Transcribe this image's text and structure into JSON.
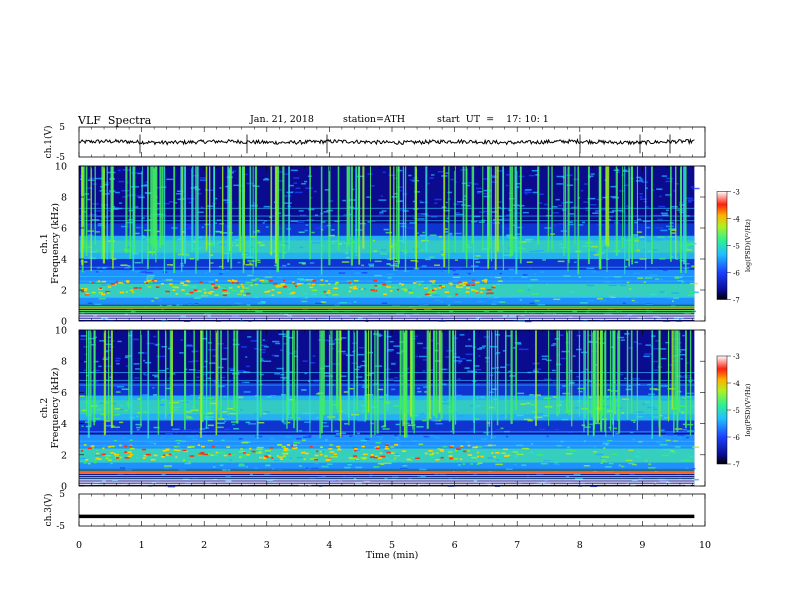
{
  "header": {
    "title": "VLF  Spectra",
    "date": "Jan. 21, 2018",
    "station": "station=ATH",
    "start": "start  UT  =    17: 10: 1"
  },
  "chart_data": [
    {
      "type": "line",
      "title": "",
      "ylabel": "ch.1(V)",
      "ylim": [
        -5,
        5
      ],
      "yticks": [
        "5",
        "-5"
      ],
      "xlim": [
        0,
        10
      ],
      "series": [
        {
          "values_description_level": 0
        }
      ]
    },
    {
      "type": "heatmap",
      "ylabel_line1": "ch.1",
      "ylabel_line2": "Frequency (kHz)",
      "ylim": [
        0,
        10
      ],
      "yticks": [
        "0",
        "2",
        "4",
        "6",
        "8",
        "10"
      ],
      "xlim": [
        0,
        10
      ],
      "colorbar": {
        "label": "log(PSD)(V²/Hz)",
        "range": [
          -7,
          -3
        ],
        "ticks": [
          "-3",
          "-4",
          "-5",
          "-6",
          "-7"
        ]
      },
      "bands_khz": [
        {
          "from": 4.0,
          "to": 5.5,
          "level": "green"
        },
        {
          "from": 1.5,
          "to": 3.0,
          "level": "green-red"
        }
      ]
    },
    {
      "type": "heatmap",
      "ylabel_line1": "ch.2",
      "ylabel_line2": "Frequency (kHz)",
      "ylim": [
        0,
        10
      ],
      "yticks": [
        "0",
        "2",
        "4",
        "6",
        "8",
        "10"
      ],
      "xlim": [
        0,
        10
      ],
      "colorbar": {
        "label": "log(PSD)(V²/Hz)",
        "range": [
          -7,
          -3
        ],
        "ticks": [
          "-3",
          "-4",
          "-5",
          "-6",
          "-7"
        ]
      },
      "bands_khz": [
        {
          "from": 4.2,
          "to": 5.8,
          "level": "green"
        },
        {
          "from": 1.5,
          "to": 3.0,
          "level": "green-red"
        }
      ]
    },
    {
      "type": "line",
      "ylabel": "ch.3(V)",
      "ylim": [
        -5,
        5
      ],
      "yticks": [
        "5",
        "-5"
      ],
      "xlim": [
        0,
        10
      ],
      "xlabel": "Time  (min)",
      "xticks": [
        "0",
        "1",
        "2",
        "3",
        "4",
        "5",
        "6",
        "7",
        "8",
        "9",
        "10"
      ],
      "series": [
        {
          "values": [
            -2,
            -2
          ]
        }
      ]
    }
  ],
  "colors": {
    "axis": "#000000",
    "colormap": [
      "#0a0a8c",
      "#1030ff",
      "#20a8ff",
      "#30e0d0",
      "#40f060",
      "#a0f020",
      "#f0d000",
      "#ff4010",
      "#ffffff"
    ]
  }
}
